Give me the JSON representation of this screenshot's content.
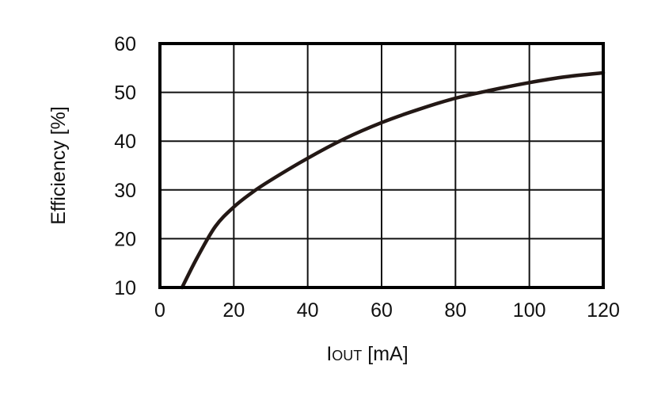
{
  "chart_data": {
    "type": "line",
    "title": "",
    "xlabel": {
      "main": "I",
      "sub": "OUT",
      "unit": " [mA]"
    },
    "ylabel": "Efficiency [%]",
    "xlim": [
      0,
      120
    ],
    "ylim": [
      10,
      60
    ],
    "xticks": [
      "0",
      "20",
      "40",
      "60",
      "80",
      "100",
      "120"
    ],
    "yticks": [
      "10",
      "20",
      "30",
      "40",
      "50",
      "60"
    ],
    "grid": true,
    "series": [
      {
        "color": "#231815",
        "x": [
          6,
          10,
          15,
          20,
          25,
          30,
          40,
          50,
          60,
          70,
          80,
          90,
          100,
          110,
          120
        ],
        "y": [
          10,
          16,
          22.5,
          26.5,
          29.5,
          32,
          36.5,
          40.5,
          43.8,
          46.5,
          48.8,
          50.5,
          52,
          53.2,
          54
        ]
      }
    ]
  }
}
